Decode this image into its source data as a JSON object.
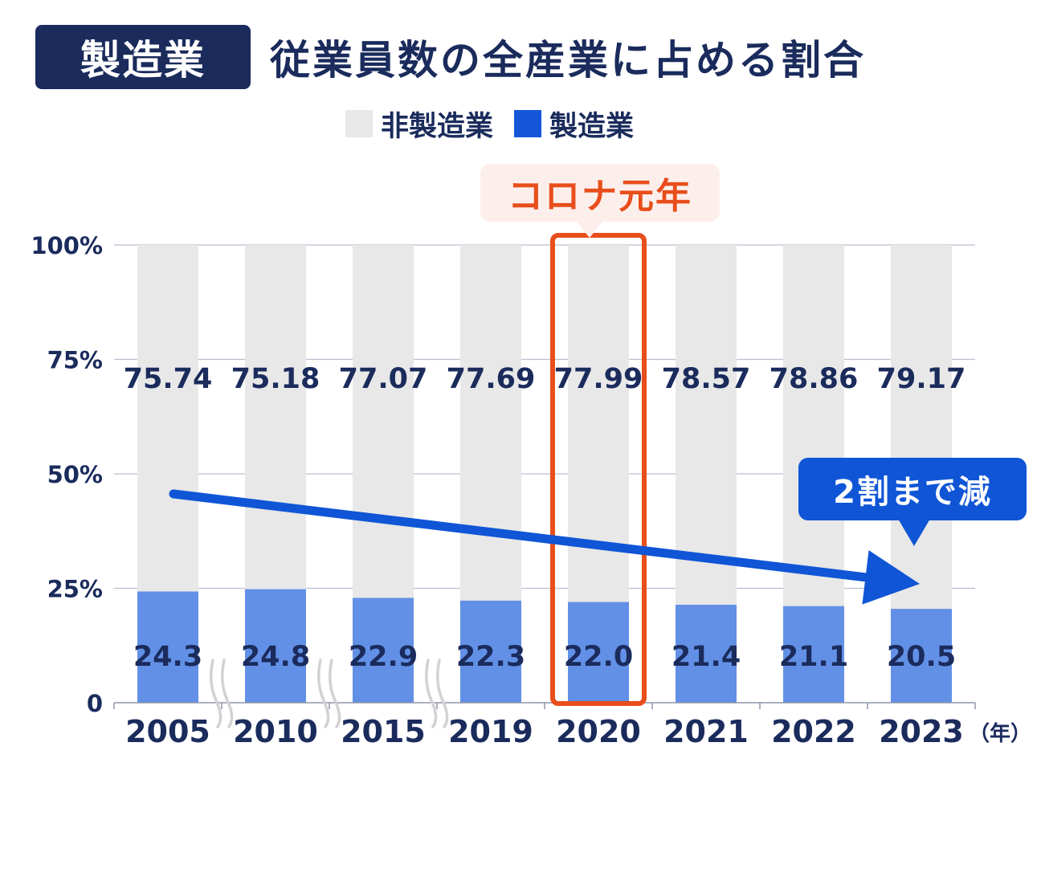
{
  "header": {
    "tag": "製造業",
    "title": "従業員数の全産業に占める割合"
  },
  "legend": [
    {
      "label": "非製造業",
      "color": "#e8e8e8"
    },
    {
      "label": "製造業",
      "color": "#1556d9"
    }
  ],
  "callouts": {
    "highlight": "コロナ元年",
    "highlight_color": "#e84e1b",
    "trend": "2割まで減",
    "trend_color": "#0f55d6"
  },
  "unit_label": "（年）",
  "chart_data": {
    "type": "bar",
    "stacked": true,
    "categories": [
      "2005",
      "2010",
      "2015",
      "2019",
      "2020",
      "2021",
      "2022",
      "2023"
    ],
    "series": [
      {
        "name": "製造業",
        "values": [
          24.3,
          24.8,
          22.9,
          22.3,
          22.0,
          21.4,
          21.1,
          20.5
        ],
        "labels": [
          "24.3",
          "24.8",
          "22.9",
          "22.3",
          "22.0",
          "21.4",
          "21.1",
          "20.5"
        ],
        "color": "#6290e6"
      },
      {
        "name": "非製造業",
        "values": [
          75.74,
          75.18,
          77.07,
          77.69,
          77.99,
          78.57,
          78.86,
          79.17
        ],
        "labels": [
          "75.74",
          "75.18",
          "77.07",
          "77.69",
          "77.99",
          "78.57",
          "78.86",
          "79.17"
        ],
        "color": "#e8e8e8"
      }
    ],
    "ylim": [
      0,
      100
    ],
    "yticks": [
      "0",
      "25%",
      "50%",
      "75%",
      "100%"
    ],
    "grid": true,
    "highlight_category": "2020",
    "trend_arrow": {
      "from": "2005",
      "to": "2023",
      "direction": "down"
    },
    "axis_break_marks": true
  }
}
